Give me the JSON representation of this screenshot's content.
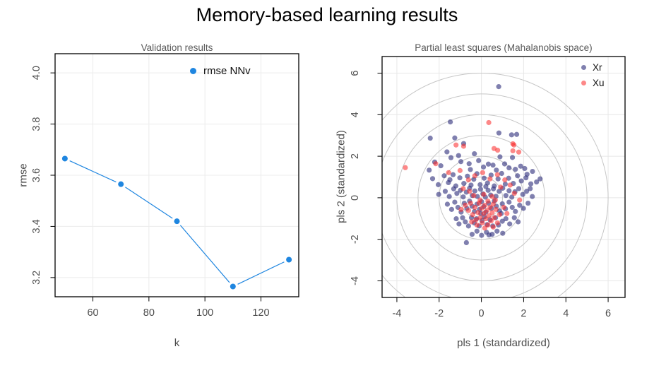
{
  "title": "Memory-based learning results",
  "chart_data": [
    {
      "type": "line",
      "title": "Validation results",
      "xlabel": "k",
      "ylabel": "rmse",
      "xlim": [
        46.5,
        133.5
      ],
      "ylim": [
        3.125,
        4.075
      ],
      "xticks": [
        60,
        80,
        100,
        120
      ],
      "xtick_labels": [
        "60",
        "80",
        "100",
        "120"
      ],
      "yticks": [
        4.0,
        3.8,
        3.6,
        3.4,
        3.2
      ],
      "ytick_labels": [
        "4.0",
        "3.8",
        "3.6",
        "3.4",
        "3.2"
      ],
      "grid": true,
      "legend_position": "top-right-inside",
      "colors": {
        "grid": "#ececec",
        "box": "#000000",
        "tick_text": "#4d4d4d"
      },
      "series": [
        {
          "name": "rmse NNv",
          "color": "#1f86e0",
          "x": [
            50,
            70,
            90,
            110,
            130
          ],
          "y": [
            3.665,
            3.565,
            3.42,
            3.165,
            3.27
          ]
        }
      ]
    },
    {
      "type": "scatter",
      "title": "Partial least squares (Mahalanobis space)",
      "xlabel": "pls 1 (standardized)",
      "ylabel": "pls 2 (standardized)",
      "xlim": [
        -4.7,
        6.8
      ],
      "ylim": [
        -4.8,
        6.8
      ],
      "xticks": [
        -4,
        -2,
        0,
        2,
        4,
        6
      ],
      "xtick_labels": [
        "-4",
        "-2",
        "0",
        "2",
        "4",
        "6"
      ],
      "yticks": [
        6,
        4,
        2,
        0,
        -2,
        -4
      ],
      "ytick_labels": [
        "6",
        "4",
        "2",
        "0",
        "-2",
        "-4"
      ],
      "grid": true,
      "legend_position": "top-right-inside",
      "mahalanobis_circle_radii": [
        1,
        2,
        3,
        4,
        5,
        6
      ],
      "colors": {
        "grid": "#e7e7e7",
        "box": "#000000",
        "tick_text": "#4d4d4d",
        "circles": "#c6c6c6"
      },
      "series": [
        {
          "name": "Xr",
          "color": "rgba(43,43,122,0.60)",
          "points": [
            [
              0.82,
              5.35
            ],
            [
              -1.47,
              3.65
            ],
            [
              0.83,
              3.12
            ],
            [
              -2.42,
              2.87
            ],
            [
              -1.26,
              2.88
            ],
            [
              1.43,
              3.03
            ],
            [
              1.67,
              3.05
            ],
            [
              -0.84,
              2.61
            ],
            [
              -1.63,
              2.21
            ],
            [
              -1.44,
              1.93
            ],
            [
              0.88,
              1.97
            ],
            [
              1.1,
              1.63
            ],
            [
              1.47,
              1.94
            ],
            [
              1.61,
              1.37
            ],
            [
              2.42,
              1.27
            ],
            [
              0.1,
              1.48
            ],
            [
              0.55,
              1.57
            ],
            [
              -2.21,
              1.72
            ],
            [
              -1.92,
              1.54
            ],
            [
              -1.08,
              2.03
            ],
            [
              -0.97,
              1.74
            ],
            [
              -0.58,
              1.64
            ],
            [
              -0.33,
              2.12
            ],
            [
              -0.13,
              1.79
            ],
            [
              0.33,
              1.62
            ],
            [
              1.31,
              1.44
            ],
            [
              1.86,
              1.52
            ],
            [
              2.05,
              1.41
            ],
            [
              -2.47,
              1.33
            ],
            [
              0.71,
              1.33
            ],
            [
              -0.52,
              1.36
            ],
            [
              2.16,
              1.13
            ],
            [
              -2.31,
              0.92
            ],
            [
              -2.04,
              0.63
            ],
            [
              -1.76,
              1.06
            ],
            [
              -1.56,
              0.73
            ],
            [
              -1.34,
              1.11
            ],
            [
              -1.21,
              0.57
            ],
            [
              -1.02,
              0.96
            ],
            [
              -0.83,
              0.69
            ],
            [
              -0.66,
              1.04
            ],
            [
              -0.49,
              0.61
            ],
            [
              -0.36,
              0.89
            ],
            [
              -0.21,
              1.16
            ],
            [
              -0.06,
              0.63
            ],
            [
              0.13,
              0.94
            ],
            [
              0.29,
              0.71
            ],
            [
              0.46,
              1.09
            ],
            [
              0.61,
              0.57
            ],
            [
              0.79,
              0.91
            ],
            [
              0.96,
              1.17
            ],
            [
              1.13,
              0.66
            ],
            [
              1.29,
              0.94
            ],
            [
              1.51,
              0.69
            ],
            [
              1.71,
              1.06
            ],
            [
              1.89,
              0.81
            ],
            [
              2.11,
              0.96
            ],
            [
              2.34,
              0.67
            ],
            [
              2.61,
              0.76
            ],
            [
              2.78,
              0.91
            ],
            [
              0.21,
              0.54
            ],
            [
              -1.49,
              0.87
            ],
            [
              -2.02,
              0.16
            ],
            [
              -1.71,
              0.31
            ],
            [
              -1.52,
              0.06
            ],
            [
              -1.31,
              0.43
            ],
            [
              -1.16,
              0.21
            ],
            [
              -0.99,
              0.36
            ],
            [
              -0.86,
              0.04
            ],
            [
              -0.71,
              0.27
            ],
            [
              -0.56,
              0.46
            ],
            [
              -0.43,
              0.11
            ],
            [
              -0.31,
              0.33
            ],
            [
              -0.19,
              0.06
            ],
            [
              -0.04,
              0.41
            ],
            [
              0.07,
              0.19
            ],
            [
              0.19,
              0.03
            ],
            [
              0.32,
              0.36
            ],
            [
              0.44,
              0.13
            ],
            [
              0.57,
              0.43
            ],
            [
              0.69,
              0.07
            ],
            [
              0.84,
              0.31
            ],
            [
              1.01,
              0.46
            ],
            [
              1.16,
              0.11
            ],
            [
              1.31,
              0.34
            ],
            [
              1.44,
              0.03
            ],
            [
              1.59,
              0.29
            ],
            [
              1.77,
              0.44
            ],
            [
              1.96,
              0.16
            ],
            [
              2.14,
              0.31
            ],
            [
              2.41,
              0.06
            ],
            [
              2.31,
              0.44
            ],
            [
              -1.61,
              -0.31
            ],
            [
              -1.41,
              -0.56
            ],
            [
              -1.26,
              -0.21
            ],
            [
              -1.11,
              -0.46
            ],
            [
              -0.96,
              -0.69
            ],
            [
              -0.81,
              -0.26
            ],
            [
              -0.69,
              -0.51
            ],
            [
              -0.56,
              -0.16
            ],
            [
              -0.44,
              -0.41
            ],
            [
              -0.33,
              -0.66
            ],
            [
              -0.21,
              -0.31
            ],
            [
              -0.09,
              -0.56
            ],
            [
              0.01,
              -0.19
            ],
            [
              0.11,
              -0.43
            ],
            [
              0.21,
              -0.69
            ],
            [
              0.34,
              -0.26
            ],
            [
              0.47,
              -0.51
            ],
            [
              0.61,
              -0.16
            ],
            [
              0.71,
              -0.41
            ],
            [
              0.86,
              -0.63
            ],
            [
              0.99,
              -0.29
            ],
            [
              1.14,
              -0.53
            ],
            [
              1.31,
              -0.21
            ],
            [
              1.46,
              -0.46
            ],
            [
              1.61,
              -0.66
            ],
            [
              1.81,
              -0.36
            ],
            [
              1.99,
              -0.51
            ],
            [
              2.21,
              -0.26
            ],
            [
              -0.03,
              -0.76
            ],
            [
              0.94,
              -0.76
            ],
            [
              -1.19,
              -1.01
            ],
            [
              -1.06,
              -1.26
            ],
            [
              -0.89,
              -0.96
            ],
            [
              -0.76,
              -1.16
            ],
            [
              -0.61,
              -1.36
            ],
            [
              -0.47,
              -0.96
            ],
            [
              -0.34,
              -1.21
            ],
            [
              -0.23,
              -1.01
            ],
            [
              -0.11,
              -1.36
            ],
            [
              0.03,
              -1.11
            ],
            [
              0.14,
              -0.91
            ],
            [
              0.27,
              -1.29
            ],
            [
              0.41,
              -1.06
            ],
            [
              0.54,
              -1.36
            ],
            [
              0.67,
              -0.96
            ],
            [
              0.81,
              -1.31
            ],
            [
              0.99,
              -1.13
            ],
            [
              1.16,
              -1.01
            ],
            [
              1.34,
              -1.26
            ],
            [
              1.56,
              -0.96
            ],
            [
              1.74,
              -1.16
            ],
            [
              -0.71,
              -2.16
            ],
            [
              -0.44,
              -1.76
            ],
            [
              -0.21,
              -1.61
            ],
            [
              0.01,
              -1.81
            ],
            [
              0.24,
              -1.66
            ],
            [
              0.51,
              -1.76
            ],
            [
              0.74,
              -1.61
            ],
            [
              1.01,
              -1.71
            ],
            [
              0.36,
              -1.79
            ]
          ]
        },
        {
          "name": "Xu",
          "color": "rgba(252,38,38,0.55)",
          "points": [
            [
              -3.6,
              1.45
            ],
            [
              -2.16,
              1.64
            ],
            [
              -1.2,
              2.54
            ],
            [
              -0.84,
              2.48
            ],
            [
              0.35,
              3.62
            ],
            [
              0.6,
              2.37
            ],
            [
              0.77,
              2.29
            ],
            [
              1.49,
              2.6
            ],
            [
              1.54,
              2.54
            ],
            [
              1.49,
              2.26
            ],
            [
              1.77,
              2.2
            ],
            [
              -1.55,
              1.21
            ],
            [
              -1.01,
              1.31
            ],
            [
              -0.61,
              0.86
            ],
            [
              -0.31,
              1.06
            ],
            [
              0.06,
              1.21
            ],
            [
              0.41,
              0.91
            ],
            [
              0.76,
              1.11
            ],
            [
              1.11,
              0.86
            ],
            [
              -0.86,
              0.44
            ],
            [
              -0.56,
              0.31
            ],
            [
              0.91,
              0.51
            ],
            [
              1.36,
              0.61
            ],
            [
              -0.76,
              -0.36
            ],
            [
              -0.61,
              -0.61
            ],
            [
              -0.51,
              -0.26
            ],
            [
              -0.41,
              -0.81
            ],
            [
              -0.31,
              -0.46
            ],
            [
              -0.26,
              -1.06
            ],
            [
              -0.16,
              -0.71
            ],
            [
              -0.11,
              -0.26
            ],
            [
              -0.06,
              -0.96
            ],
            [
              0.01,
              -0.51
            ],
            [
              0.04,
              -1.21
            ],
            [
              0.11,
              -0.76
            ],
            [
              0.16,
              -0.36
            ],
            [
              0.21,
              -1.01
            ],
            [
              0.26,
              -0.61
            ],
            [
              0.31,
              -1.31
            ],
            [
              0.36,
              -0.86
            ],
            [
              0.41,
              -0.46
            ],
            [
              0.46,
              -1.11
            ],
            [
              0.51,
              -0.71
            ],
            [
              0.56,
              -0.31
            ],
            [
              0.61,
              -0.96
            ],
            [
              0.69,
              -0.56
            ],
            [
              0.76,
              -1.21
            ],
            [
              0.86,
              -0.81
            ],
            [
              0.16,
              -1.46
            ],
            [
              -0.21,
              -1.31
            ],
            [
              0.56,
              -1.41
            ],
            [
              -0.46,
              -1.16
            ],
            [
              0.31,
              -0.16
            ],
            [
              -0.06,
              -0.11
            ],
            [
              0.51,
              0.06
            ],
            [
              -0.36,
              0.11
            ],
            [
              0.11,
              0.16
            ],
            [
              0.66,
              -0.11
            ],
            [
              1.06,
              -0.46
            ],
            [
              1.21,
              -0.76
            ],
            [
              -0.96,
              -0.56
            ],
            [
              1.81,
              -0.11
            ],
            [
              1.56,
              0.21
            ]
          ]
        }
      ]
    }
  ]
}
